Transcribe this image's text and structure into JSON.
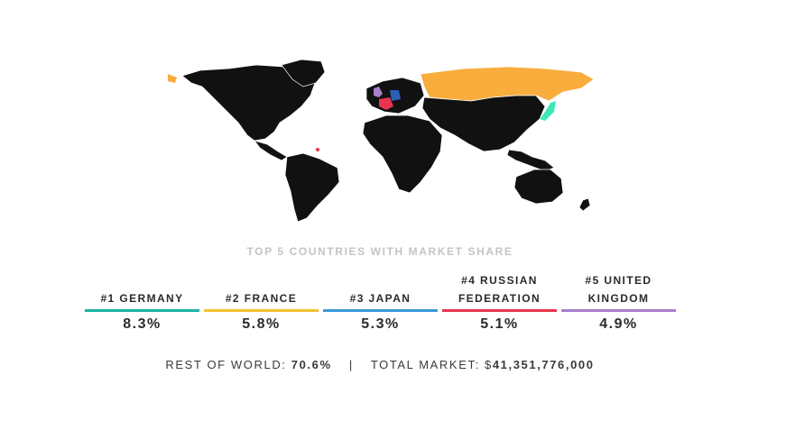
{
  "map": {
    "base_color": "#111111",
    "border_color": "#ffffff",
    "highlights": [
      {
        "rank": 1,
        "country": "Germany",
        "color": "#1db3a6"
      },
      {
        "rank": 2,
        "country": "France",
        "color": "#f2c233"
      },
      {
        "rank": 3,
        "country": "Japan",
        "color": "#3a9ad9"
      },
      {
        "rank": 4,
        "country": "Russian Federation",
        "color": "#e8344e"
      },
      {
        "rank": 5,
        "country": "United Kingdom",
        "color": "#a77ec9"
      }
    ]
  },
  "section_title": "TOP 5 COUNTRIES WITH MARKET SHARE",
  "countries": [
    {
      "name": "#1 GERMANY",
      "share": "8.3%",
      "color": "#1db3a6"
    },
    {
      "name": "#2 FRANCE",
      "share": "5.8%",
      "color": "#f2c233"
    },
    {
      "name": "#3 JAPAN",
      "share": "5.3%",
      "color": "#3a9ad9"
    },
    {
      "name": "#4 RUSSIAN FEDERATION",
      "share": "5.1%",
      "color": "#e8344e"
    },
    {
      "name": "#5 UNITED KINGDOM",
      "share": "4.9%",
      "color": "#a77ec9"
    }
  ],
  "summary": {
    "rest_label": "REST OF WORLD:",
    "rest_value": "70.6%",
    "separator": "|",
    "total_label": "TOTAL MARKET: $",
    "total_value": "41,351,776,000"
  }
}
